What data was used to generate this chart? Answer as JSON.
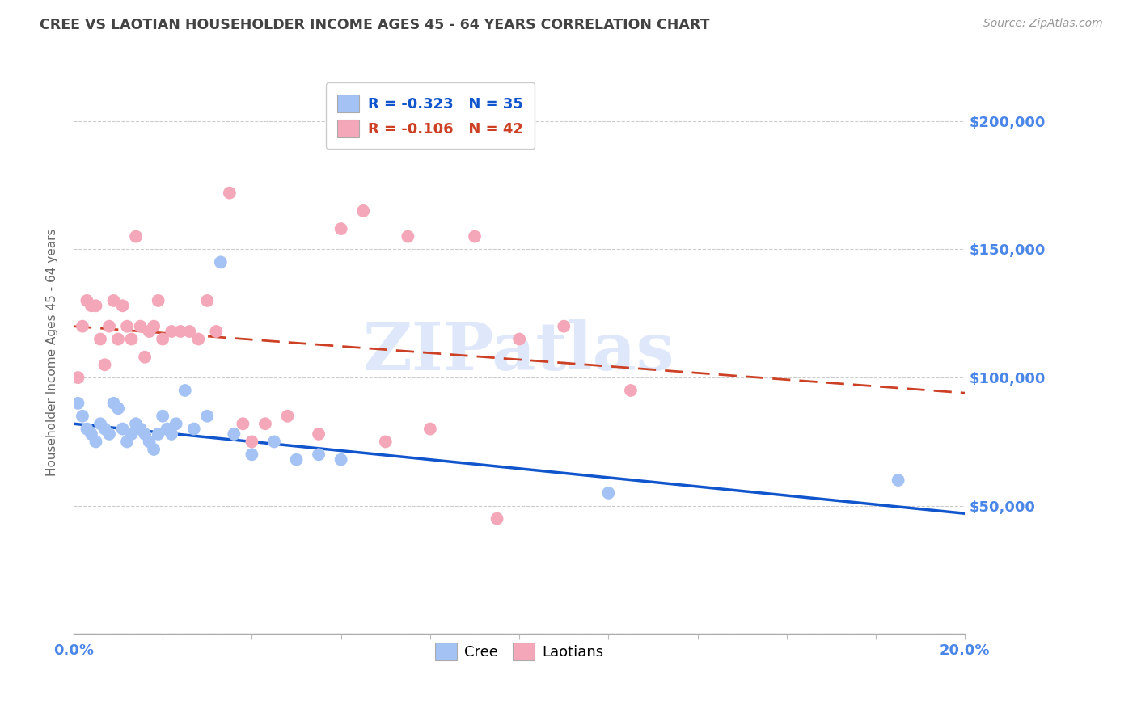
{
  "title": "CREE VS LAOTIAN HOUSEHOLDER INCOME AGES 45 - 64 YEARS CORRELATION CHART",
  "source": "Source: ZipAtlas.com",
  "ylabel": "Householder Income Ages 45 - 64 years",
  "xlim": [
    0.0,
    0.2
  ],
  "ylim": [
    0,
    220000
  ],
  "yticks": [
    0,
    50000,
    100000,
    150000,
    200000
  ],
  "ytick_labels": [
    "",
    "$50,000",
    "$100,000",
    "$150,000",
    "$200,000"
  ],
  "xticks": [
    0.0,
    0.02,
    0.04,
    0.06,
    0.08,
    0.1,
    0.12,
    0.14,
    0.16,
    0.18,
    0.2
  ],
  "xtick_labels": [
    "0.0%",
    "",
    "",
    "",
    "",
    "",
    "",
    "",
    "",
    "",
    "20.0%"
  ],
  "watermark_text": "ZIPatlas",
  "cree_color": "#a4c2f4",
  "laotian_color": "#f4a7b9",
  "cree_line_color": "#1155cc",
  "laotian_line_color": "#cc4125",
  "axis_label_color": "#4a86e8",
  "title_color": "#434343",
  "source_color": "#999999",
  "legend_r_cree": "-0.323",
  "legend_n_cree": "35",
  "legend_r_laotian": "-0.106",
  "legend_n_laotian": "42",
  "cree_x": [
    0.001,
    0.002,
    0.003,
    0.004,
    0.005,
    0.006,
    0.007,
    0.008,
    0.009,
    0.01,
    0.011,
    0.012,
    0.013,
    0.014,
    0.015,
    0.016,
    0.017,
    0.018,
    0.019,
    0.02,
    0.021,
    0.022,
    0.023,
    0.025,
    0.027,
    0.03,
    0.033,
    0.036,
    0.04,
    0.045,
    0.05,
    0.055,
    0.06,
    0.12,
    0.185
  ],
  "cree_y": [
    90000,
    85000,
    80000,
    78000,
    75000,
    82000,
    80000,
    78000,
    90000,
    88000,
    80000,
    75000,
    78000,
    82000,
    80000,
    78000,
    75000,
    72000,
    78000,
    85000,
    80000,
    78000,
    82000,
    95000,
    80000,
    85000,
    145000,
    78000,
    70000,
    75000,
    68000,
    70000,
    68000,
    55000,
    60000
  ],
  "laotian_x": [
    0.001,
    0.002,
    0.003,
    0.004,
    0.005,
    0.006,
    0.007,
    0.008,
    0.009,
    0.01,
    0.011,
    0.012,
    0.013,
    0.014,
    0.015,
    0.016,
    0.017,
    0.018,
    0.019,
    0.02,
    0.022,
    0.024,
    0.026,
    0.028,
    0.03,
    0.032,
    0.035,
    0.038,
    0.04,
    0.043,
    0.048,
    0.055,
    0.06,
    0.065,
    0.07,
    0.075,
    0.08,
    0.09,
    0.095,
    0.1,
    0.11,
    0.125
  ],
  "laotian_y": [
    100000,
    120000,
    130000,
    128000,
    128000,
    115000,
    105000,
    120000,
    130000,
    115000,
    128000,
    120000,
    115000,
    155000,
    120000,
    108000,
    118000,
    120000,
    130000,
    115000,
    118000,
    118000,
    118000,
    115000,
    130000,
    118000,
    172000,
    82000,
    75000,
    82000,
    85000,
    78000,
    158000,
    165000,
    75000,
    155000,
    80000,
    155000,
    45000,
    115000,
    120000,
    95000
  ],
  "background_color": "#ffffff",
  "grid_color": "#cccccc",
  "cree_line_intercept": 82000,
  "cree_line_slope": -175000,
  "laotian_line_intercept": 120000,
  "laotian_line_slope": -130000
}
